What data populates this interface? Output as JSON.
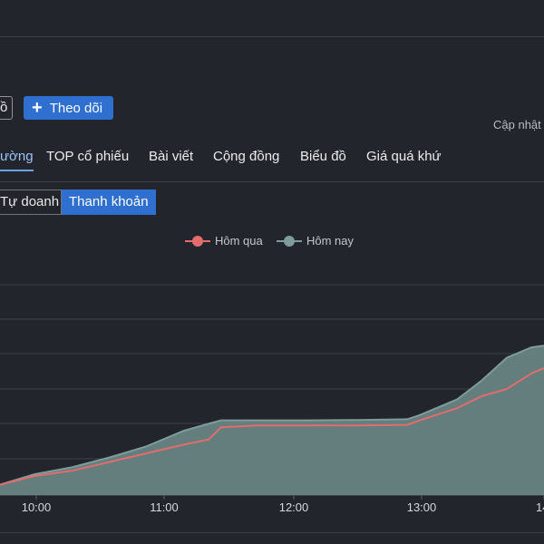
{
  "header": {
    "prev_button_label": "ồ",
    "follow_button_label": "Theo dõi",
    "updated_label": "Cập nhật"
  },
  "tabs": [
    {
      "label": "ường",
      "active": true
    },
    {
      "label": "TOP cổ phiếu",
      "active": false
    },
    {
      "label": "Bài viết",
      "active": false
    },
    {
      "label": "Cộng đồng",
      "active": false
    },
    {
      "label": "Biểu đồ",
      "active": false
    },
    {
      "label": "Giá quá khứ",
      "active": false
    }
  ],
  "subtabs": [
    {
      "label": "Tự doanh",
      "active": false
    },
    {
      "label": "Thanh khoản",
      "active": true
    }
  ],
  "colors": {
    "yesterday": "#e26d6d",
    "today": "#7f9c9c",
    "today_fill": "#6a8686",
    "accent": "#2f6fd0"
  },
  "chart_data": {
    "type": "area",
    "x_ticks": [
      "10:00",
      "11:00",
      "12:00",
      "13:00",
      "14"
    ],
    "grid": true,
    "legend_position": "top-center",
    "series": [
      {
        "name": "Hôm qua",
        "type": "line",
        "points": [
          [
            9.72,
            0.3
          ],
          [
            10.0,
            0.55
          ],
          [
            10.3,
            0.7
          ],
          [
            10.6,
            0.95
          ],
          [
            10.9,
            1.2
          ],
          [
            11.2,
            1.45
          ],
          [
            11.4,
            1.6
          ],
          [
            11.5,
            1.95
          ],
          [
            11.8,
            2.0
          ],
          [
            12.2,
            2.0
          ],
          [
            12.6,
            2.0
          ],
          [
            13.0,
            2.02
          ],
          [
            13.1,
            2.15
          ],
          [
            13.4,
            2.5
          ],
          [
            13.6,
            2.85
          ],
          [
            13.8,
            3.05
          ],
          [
            14.0,
            3.5
          ],
          [
            14.1,
            3.65
          ]
        ]
      },
      {
        "name": "Hôm nay",
        "type": "area",
        "points": [
          [
            9.72,
            0.3
          ],
          [
            10.0,
            0.6
          ],
          [
            10.3,
            0.8
          ],
          [
            10.6,
            1.08
          ],
          [
            10.9,
            1.4
          ],
          [
            11.2,
            1.85
          ],
          [
            11.4,
            2.05
          ],
          [
            11.5,
            2.15
          ],
          [
            11.8,
            2.15
          ],
          [
            12.2,
            2.15
          ],
          [
            12.6,
            2.16
          ],
          [
            13.0,
            2.18
          ],
          [
            13.1,
            2.3
          ],
          [
            13.4,
            2.75
          ],
          [
            13.6,
            3.3
          ],
          [
            13.8,
            3.95
          ],
          [
            14.0,
            4.25
          ],
          [
            14.1,
            4.3
          ]
        ]
      }
    ],
    "y_range": [
      0,
      6
    ],
    "x_range": [
      9.72,
      14.1
    ]
  }
}
